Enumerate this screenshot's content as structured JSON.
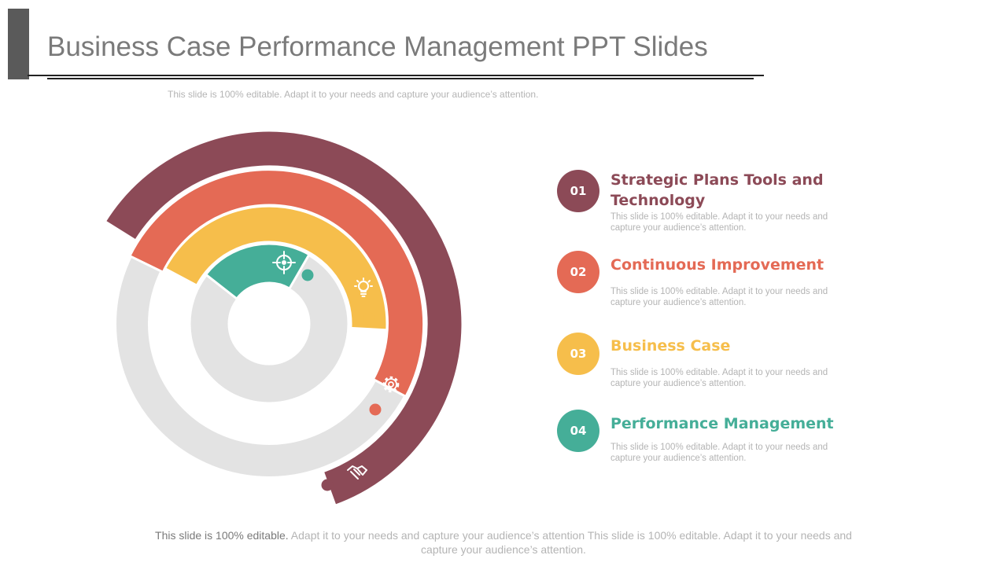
{
  "slide": {
    "title": "Business Case Performance Management PPT Slides",
    "subtitle": "This slide is 100% editable. Adapt it to your needs and capture your audience’s attention."
  },
  "items": [
    {
      "number": "01",
      "title": "Strategic Plans Tools and Technology",
      "description": "This slide is 100% editable. Adapt it to your needs and capture your audience’s attention.",
      "color": "#8c4a57",
      "icon": "handshake-icon"
    },
    {
      "number": "02",
      "title": "Continuous  Improvement",
      "description": "This slide is 100% editable. Adapt it to your needs and capture your audience’s attention.",
      "color": "#e46a55",
      "icon": "gear-icon"
    },
    {
      "number": "03",
      "title": "Business Case",
      "description": "This slide is 100% editable. Adapt it to your needs and capture your audience’s attention.",
      "color": "#f6be4b",
      "icon": "lightbulb-icon"
    },
    {
      "number": "04",
      "title": "Performance Management",
      "description": "This slide is 100% editable. Adapt it to your needs and capture your audience’s attention.",
      "color": "#45ae98",
      "icon": "target-icon"
    }
  ],
  "footer": {
    "lead": "This slide is 100% editable.",
    "text": " Adapt it to your needs and capture your audience’s attention This slide is 100% editable. Adapt it to your needs and capture your audience’s attention."
  },
  "colors": {
    "track": "#e3e3e3",
    "title": "#7a7a7a",
    "accent_bar": "#5a5a5a"
  }
}
